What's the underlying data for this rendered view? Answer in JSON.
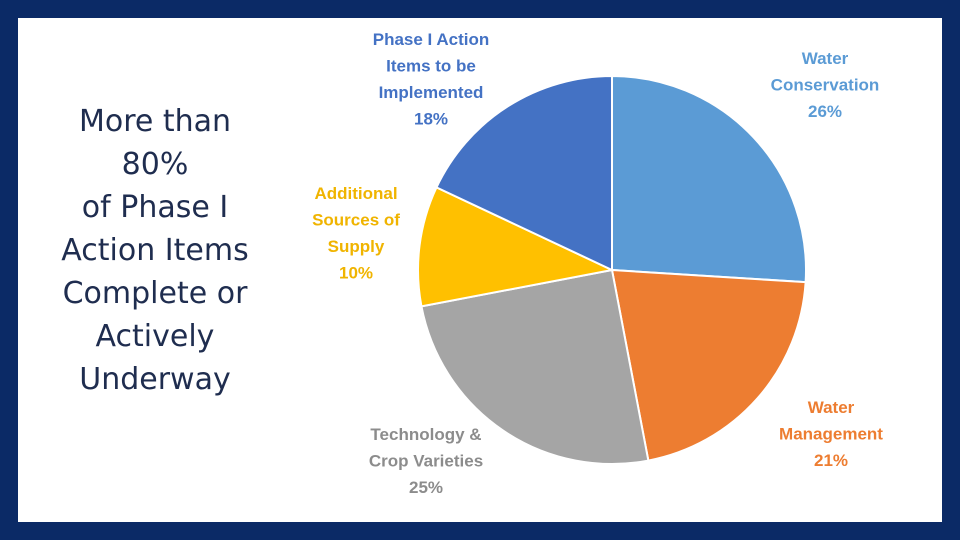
{
  "headline": {
    "lines": [
      "More than",
      "80%",
      "of Phase I",
      "Action Items",
      "Complete or",
      "Actively",
      "Underway"
    ]
  },
  "chart_data": {
    "type": "pie",
    "title": "",
    "start_angle_deg": 0,
    "direction": "clockwise",
    "slices": [
      {
        "name": "Water Conservation",
        "label_lines": [
          "Water",
          "Conservation",
          "26%"
        ],
        "value": 26,
        "color": "#5b9bd5",
        "label_color": "#5b9bd5"
      },
      {
        "name": "Water Management",
        "label_lines": [
          "Water",
          "Management",
          "21%"
        ],
        "value": 21,
        "color": "#ed7d31",
        "label_color": "#ed7d31"
      },
      {
        "name": "Technology & Crop Varieties",
        "label_lines": [
          "Technology &",
          "Crop Varieties",
          "25%"
        ],
        "value": 25,
        "color": "#a5a5a5",
        "label_color": "#8c8c8c"
      },
      {
        "name": "Additional Sources of Supply",
        "label_lines": [
          "Additional",
          "Sources of",
          "Supply",
          "10%"
        ],
        "value": 10,
        "color": "#ffc000",
        "label_color": "#f0b400"
      },
      {
        "name": "Phase I Action Items to be Implemented",
        "label_lines": [
          "Phase I Action",
          "Items to be",
          "Implemented",
          "18%"
        ],
        "value": 18,
        "color": "#4472c4",
        "label_color": "#4472c4"
      }
    ]
  }
}
